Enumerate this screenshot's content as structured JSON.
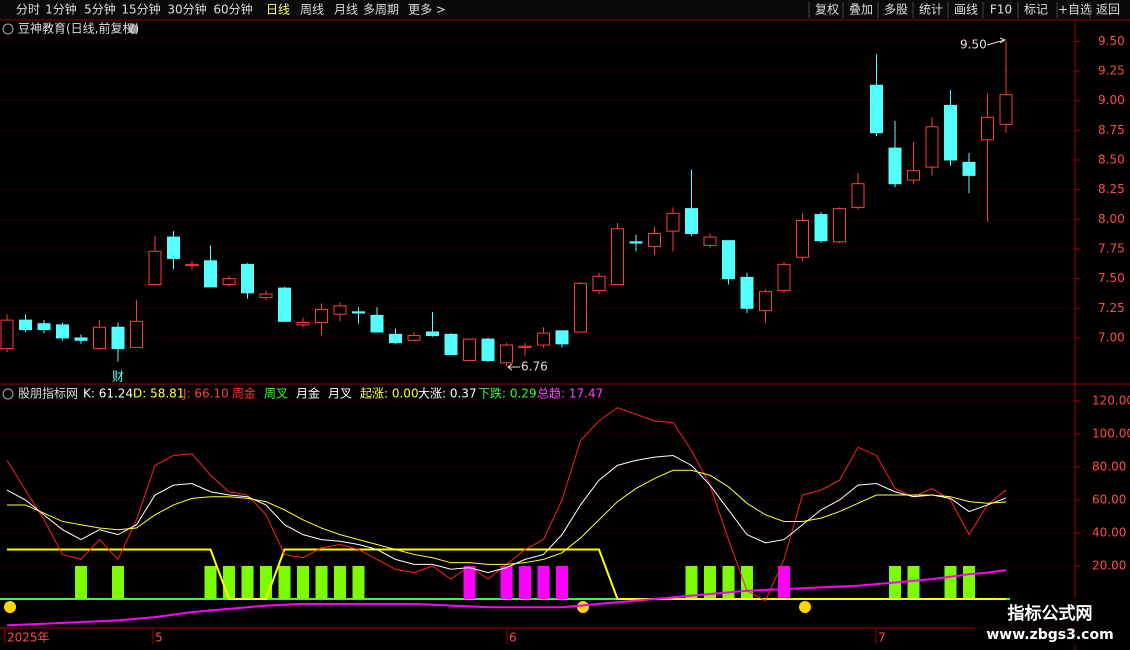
{
  "toolbar": {
    "left": [
      "分时",
      "1分钟",
      "5分钟",
      "15分钟",
      "30分钟",
      "60分钟",
      "日线",
      "周线",
      "月线",
      "多周期",
      "更多 >"
    ],
    "active": 6,
    "right": [
      "复权",
      "叠加",
      "多股",
      "统计",
      "画线",
      "F10",
      "标记",
      "+自选",
      "返回"
    ]
  },
  "chart_data": [
    {
      "type": "candlestick",
      "title": "豆神教育(日线,前复权)",
      "up_color": "#ff3c3c",
      "down_color": "#54ffff",
      "open": [
        6.91,
        7.15,
        7.12,
        7.11,
        7.0,
        6.91,
        7.09,
        6.92,
        7.45,
        7.85,
        7.61,
        7.65,
        7.45,
        7.62,
        7.34,
        7.42,
        7.11,
        7.13,
        7.2,
        7.22,
        7.19,
        7.03,
        6.98,
        7.05,
        7.03,
        6.81,
        6.99,
        6.79,
        6.92,
        6.94,
        7.06,
        7.05,
        7.4,
        7.45,
        7.81,
        7.77,
        7.9,
        8.09,
        7.78,
        7.82,
        7.51,
        7.23,
        7.4,
        7.68,
        8.04,
        7.81,
        8.1,
        9.13,
        8.6,
        8.33,
        8.44,
        8.96,
        8.48,
        8.67,
        8.8
      ],
      "high": [
        7.2,
        7.2,
        7.15,
        7.13,
        7.03,
        7.15,
        7.13,
        7.32,
        7.86,
        7.9,
        7.65,
        7.78,
        7.52,
        7.63,
        7.4,
        7.43,
        7.17,
        7.29,
        7.3,
        7.26,
        7.26,
        7.08,
        7.05,
        7.22,
        7.04,
        6.99,
        7.0,
        6.96,
        6.96,
        7.09,
        7.06,
        7.47,
        7.55,
        7.97,
        7.87,
        7.94,
        8.1,
        8.42,
        7.88,
        7.82,
        7.55,
        7.41,
        7.64,
        8.05,
        8.06,
        8.1,
        8.39,
        9.39,
        8.83,
        8.65,
        8.86,
        9.09,
        8.56,
        9.06,
        9.5
      ],
      "low": [
        6.88,
        7.05,
        7.04,
        6.98,
        6.95,
        6.9,
        6.8,
        6.92,
        7.45,
        7.58,
        7.57,
        7.43,
        7.43,
        7.33,
        7.32,
        7.14,
        7.09,
        7.02,
        7.14,
        7.12,
        7.05,
        6.95,
        6.97,
        7.01,
        6.86,
        6.81,
        6.8,
        6.76,
        6.85,
        6.92,
        6.92,
        7.05,
        7.37,
        7.45,
        7.73,
        7.7,
        7.73,
        7.86,
        7.76,
        7.45,
        7.21,
        7.13,
        7.38,
        7.65,
        7.8,
        7.8,
        8.08,
        8.7,
        8.27,
        8.3,
        8.37,
        8.45,
        8.22,
        7.98,
        8.73
      ],
      "close": [
        7.15,
        7.07,
        7.07,
        7.0,
        6.98,
        7.09,
        6.91,
        7.14,
        7.73,
        7.67,
        7.62,
        7.43,
        7.5,
        7.38,
        7.37,
        7.14,
        7.13,
        7.24,
        7.27,
        7.21,
        7.05,
        6.96,
        7.02,
        7.02,
        6.86,
        6.99,
        6.81,
        6.94,
        6.93,
        7.04,
        6.95,
        7.46,
        7.52,
        7.92,
        7.8,
        7.88,
        8.05,
        7.88,
        7.85,
        7.5,
        7.25,
        7.39,
        7.62,
        7.99,
        7.82,
        8.09,
        8.3,
        8.73,
        8.3,
        8.41,
        8.78,
        8.5,
        8.37,
        8.86,
        9.05
      ],
      "ylim": [
        6.62,
        9.68
      ],
      "yticks": [
        {
          "value": 7,
          "label": "7.00"
        },
        {
          "value": 7.25,
          "label": "7.25"
        },
        {
          "value": 7.5,
          "label": "7.50"
        },
        {
          "value": 7.75,
          "label": "7.75"
        },
        {
          "value": 8,
          "label": "8.00"
        },
        {
          "value": 8.25,
          "label": "8.25"
        },
        {
          "value": 8.5,
          "label": "8.50"
        },
        {
          "value": 8.75,
          "label": "8.75"
        },
        {
          "value": 9,
          "label": "9.00"
        },
        {
          "value": 9.25,
          "label": "9.25"
        },
        {
          "value": 9.5,
          "label": "9.50"
        }
      ],
      "annotations": [
        "9.50",
        "6.76",
        "财"
      ],
      "grid": true
    },
    {
      "type": "line",
      "title": "股朋指标网",
      "legend": [
        {
          "text": "K: 61.24",
          "color": "#ffffff"
        },
        {
          "text": "D: 58.81",
          "color": "#ffff33"
        },
        {
          "text": "J: 66.10",
          "color": "#ff4040"
        },
        {
          "text": "周金",
          "color": "#ff3030"
        },
        {
          "text": "周叉",
          "color": "#33ff33"
        },
        {
          "text": "月金",
          "color": "#ffffff"
        },
        {
          "text": "月叉",
          "color": "#ffffff"
        },
        {
          "text": "起涨: 0.00",
          "color": "#ffff33"
        },
        {
          "text": "大涨: 0.37",
          "color": "#ffffff"
        },
        {
          "text": "下跌: 0.29",
          "color": "#33ff33"
        },
        {
          "text": "总趋: 17.47",
          "color": "#ff44ff"
        }
      ],
      "series": [
        {
          "type": "bar",
          "color": "#7cfc00",
          "values": [
            null,
            null,
            null,
            null,
            20,
            null,
            20,
            null,
            null,
            null,
            null,
            20,
            20,
            20,
            20,
            20,
            20,
            20,
            20,
            20,
            null,
            null,
            null,
            null,
            null,
            null,
            null,
            null,
            null,
            null,
            null,
            null,
            null,
            null,
            null,
            null,
            null,
            20,
            20,
            20,
            20,
            null,
            null,
            null,
            null,
            null,
            null,
            null,
            20,
            20,
            null,
            20,
            20,
            null,
            null
          ]
        },
        {
          "type": "bar",
          "color": "#ff00ff",
          "values": [
            null,
            null,
            null,
            null,
            null,
            null,
            null,
            null,
            null,
            null,
            null,
            null,
            null,
            null,
            null,
            null,
            null,
            null,
            null,
            null,
            null,
            null,
            null,
            null,
            null,
            20,
            null,
            20,
            20,
            20,
            20,
            null,
            null,
            null,
            null,
            null,
            null,
            null,
            null,
            null,
            null,
            null,
            20,
            null,
            null,
            null,
            null,
            null,
            null,
            null,
            null,
            null,
            null,
            null,
            null
          ]
        },
        {
          "type": "line",
          "color": "#ffff00",
          "values": [
            30,
            30,
            30,
            30,
            30,
            30,
            30,
            30,
            30,
            30,
            30,
            30,
            0,
            0,
            0,
            30,
            30,
            30,
            30,
            30,
            30,
            30,
            30,
            30,
            30,
            30,
            30,
            30,
            30,
            30,
            30,
            30,
            30,
            0,
            0,
            0,
            0,
            0,
            0,
            0,
            0,
            0,
            0,
            0,
            0,
            0,
            0,
            0,
            0,
            0,
            0,
            0,
            0,
            0,
            0
          ]
        },
        {
          "type": "line",
          "color": "#ff00ff",
          "values": [
            -16,
            -15.5,
            -15,
            -14.5,
            -14,
            -13.5,
            -13,
            -12,
            -11,
            -9.5,
            -8,
            -7,
            -6,
            -5,
            -4,
            -3.5,
            -3,
            -3,
            -3,
            -3,
            -3,
            -3,
            -3,
            -3.5,
            -4,
            -4.5,
            -5,
            -5,
            -5,
            -5,
            -5,
            -4,
            -3,
            -2,
            -1,
            0,
            1,
            2,
            3,
            4,
            5,
            5.5,
            6,
            6.5,
            7,
            7.5,
            8,
            9,
            10,
            11,
            12,
            13.5,
            15,
            16,
            17.47
          ]
        },
        {
          "type": "line",
          "color": "#ff2020",
          "values": [
            84,
            66,
            48,
            27,
            24,
            36,
            24,
            48,
            81,
            87,
            88,
            75,
            65,
            63,
            51,
            27,
            25,
            31,
            33,
            30,
            24,
            18,
            16,
            20,
            12,
            20,
            12,
            21,
            30,
            36,
            60,
            96,
            108,
            116,
            112,
            108,
            107,
            90,
            69,
            36,
            5,
            -1,
            24,
            63,
            66,
            72,
            92,
            87,
            67,
            62,
            67,
            60,
            39,
            57,
            66.1
          ]
        },
        {
          "type": "line",
          "color": "#ffffff",
          "values": [
            66,
            60,
            51,
            42,
            36,
            42,
            39,
            45,
            63,
            69,
            70,
            65,
            63,
            62,
            57,
            45,
            39,
            36,
            35,
            33,
            30,
            24,
            21,
            21,
            18,
            19,
            16,
            19,
            24,
            27,
            39,
            57,
            72,
            81,
            84,
            86,
            87,
            81,
            69,
            54,
            39,
            34,
            36,
            45,
            54,
            60,
            69,
            70,
            65,
            62,
            63,
            61,
            53,
            57,
            61.24
          ]
        },
        {
          "type": "line",
          "color": "#ffff33",
          "values": [
            57,
            57,
            52,
            47,
            45,
            43,
            42,
            43,
            51,
            57,
            61,
            62,
            62,
            61,
            59,
            54,
            48,
            43,
            39,
            36,
            33,
            30,
            27,
            25,
            22,
            22,
            21,
            21,
            22,
            24,
            28,
            37,
            48,
            59,
            67,
            73,
            78,
            78,
            75,
            68,
            58,
            51,
            47,
            47,
            49,
            53,
            58,
            63,
            63,
            63,
            63,
            62,
            59,
            58,
            58.81
          ]
        }
      ],
      "ylim": [
        -17.6,
        127.9
      ],
      "yticks": [
        {
          "value": 20,
          "label": "20.00"
        },
        {
          "value": 40,
          "label": "40.00"
        },
        {
          "value": 60,
          "label": "60.00"
        },
        {
          "value": 80,
          "label": "80.00"
        },
        {
          "value": 100,
          "label": "100.00"
        },
        {
          "value": 120,
          "label": "120.00"
        }
      ],
      "x_labels": [
        "2025年",
        "5",
        "6",
        "7"
      ],
      "grid": true
    }
  ],
  "watermark": {
    "title": "指标公式网",
    "url": "www.zbgs3.com"
  }
}
